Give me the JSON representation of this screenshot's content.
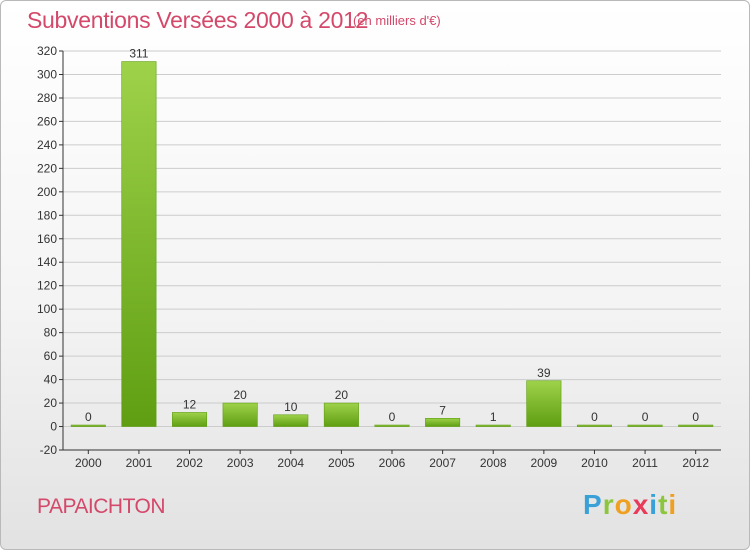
{
  "title": "Subventions Versées 2000 à 2012",
  "subtitle": "(en milliers d'€)",
  "commune": "PAPAICHTON",
  "logo": {
    "text": "Proxiti",
    "letters": [
      {
        "char": "P",
        "color": "#3aa0d8"
      },
      {
        "char": "r",
        "color": "#8cc63f"
      },
      {
        "char": "o",
        "color": "#f0a020"
      },
      {
        "char": "x",
        "color": "#e83a5a"
      },
      {
        "char": "i",
        "color": "#3aa0d8"
      },
      {
        "char": "t",
        "color": "#8cc63f"
      },
      {
        "char": "i",
        "color": "#f0a020"
      }
    ]
  },
  "colors": {
    "title": "#d4486a",
    "bar_light": "#9ed24a",
    "bar_dark": "#5f9e12",
    "grid": "#cccccc",
    "axis": "#333333"
  },
  "chart_data": {
    "type": "bar",
    "title": "Subventions Versées 2000 à 2012",
    "subtitle": "(en milliers d'€)",
    "categories": [
      "2000",
      "2001",
      "2002",
      "2003",
      "2004",
      "2005",
      "2006",
      "2007",
      "2008",
      "2009",
      "2010",
      "2011",
      "2012"
    ],
    "values": [
      0,
      311,
      12,
      20,
      10,
      20,
      0,
      7,
      1,
      39,
      0,
      0,
      0
    ],
    "value_labels": [
      "0",
      "311",
      "12",
      "20",
      "10",
      "20",
      "0",
      "7",
      "1",
      "39",
      "0",
      "0",
      "0"
    ],
    "ylim": [
      -20,
      320
    ],
    "yticks": [
      -20,
      0,
      20,
      40,
      60,
      80,
      100,
      120,
      140,
      160,
      180,
      200,
      220,
      240,
      260,
      280,
      300,
      320
    ],
    "grid": true,
    "legend": "none"
  }
}
